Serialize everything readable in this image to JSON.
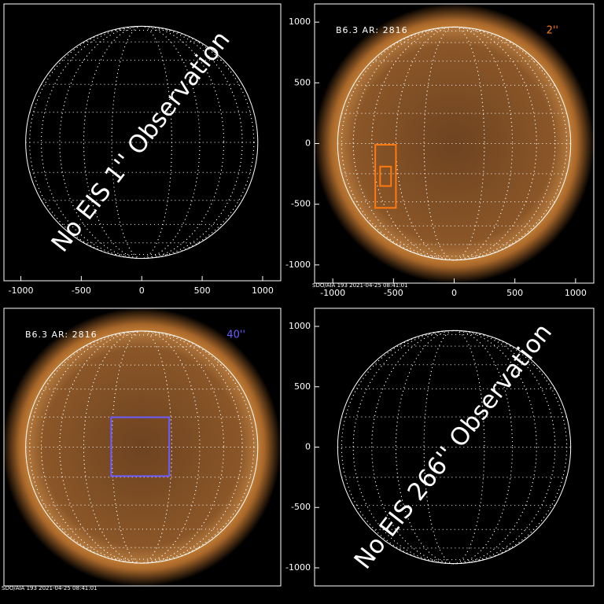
{
  "chart_data": [
    {
      "type": "solar",
      "has_image": false,
      "message": "No EIS 1'' Observation",
      "xlim": [
        -1140,
        1150
      ],
      "ylim": [
        -1150,
        1150
      ],
      "xticks": [
        -1000,
        -500,
        0,
        500,
        1000
      ]
    },
    {
      "type": "solar",
      "has_image": true,
      "title": "B6.3 AR: 2816",
      "fov_label": "2''",
      "box_color": "#ff7a10",
      "boxes": [
        {
          "x": [
            -650,
            -480
          ],
          "y": [
            -530,
            -10
          ]
        },
        {
          "x": [
            -610,
            -520
          ],
          "y": [
            -350,
            -190
          ]
        }
      ],
      "footer": "SDO/AIA 193   2021-04-25 08:41:01",
      "xlim": [
        -1150,
        1150
      ],
      "ylim": [
        -1150,
        1150
      ],
      "xticks": [
        -1000,
        -500,
        0,
        500,
        1000
      ],
      "yticks": [
        -1000,
        -500,
        0,
        500,
        1000
      ]
    },
    {
      "type": "solar",
      "has_image": true,
      "title": "B6.3 AR: 2816",
      "fov_label": "40''",
      "box_color": "#6a5cff",
      "boxes": [
        {
          "x": [
            -253,
            227
          ],
          "y": [
            -240,
            247
          ]
        }
      ],
      "footer": "SDO/AIA 193   2021-04-25 08:41:01",
      "xlim": [
        -1140,
        1150
      ],
      "ylim": [
        -1150,
        1150
      ]
    },
    {
      "type": "solar",
      "has_image": false,
      "message": "No EIS 266'' Observation",
      "xlim": [
        -1150,
        1150
      ],
      "ylim": [
        -1150,
        1150
      ],
      "yticks": [
        -1000,
        -500,
        0,
        500,
        1000
      ]
    }
  ]
}
